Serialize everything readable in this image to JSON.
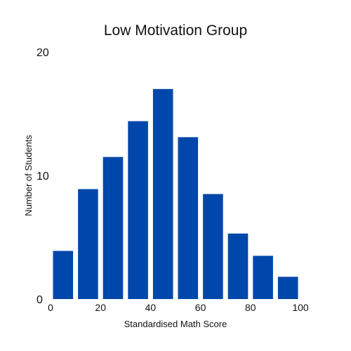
{
  "chart_data": {
    "type": "bar",
    "title": "Low Motivation Group",
    "xlabel": "Standardised Math Score",
    "ylabel": "Number of Students",
    "bins": [
      {
        "x0": 0,
        "x1": 10,
        "value": 3.9
      },
      {
        "x0": 10,
        "x1": 20,
        "value": 8.9
      },
      {
        "x0": 20,
        "x1": 30,
        "value": 11.5
      },
      {
        "x0": 30,
        "x1": 40,
        "value": 14.4
      },
      {
        "x0": 40,
        "x1": 50,
        "value": 17.0
      },
      {
        "x0": 50,
        "x1": 60,
        "value": 13.1
      },
      {
        "x0": 60,
        "x1": 70,
        "value": 8.5
      },
      {
        "x0": 70,
        "x1": 80,
        "value": 5.3
      },
      {
        "x0": 80,
        "x1": 90,
        "value": 3.5
      },
      {
        "x0": 90,
        "x1": 100,
        "value": 1.8
      }
    ],
    "xticks": [
      "0",
      "20",
      "40",
      "60",
      "80",
      "100"
    ],
    "yticks": [
      "0",
      "10",
      "20"
    ],
    "xlim": [
      0,
      100
    ],
    "ylim": [
      0,
      20
    ],
    "grid": false,
    "bar_color": "#0047AB"
  }
}
